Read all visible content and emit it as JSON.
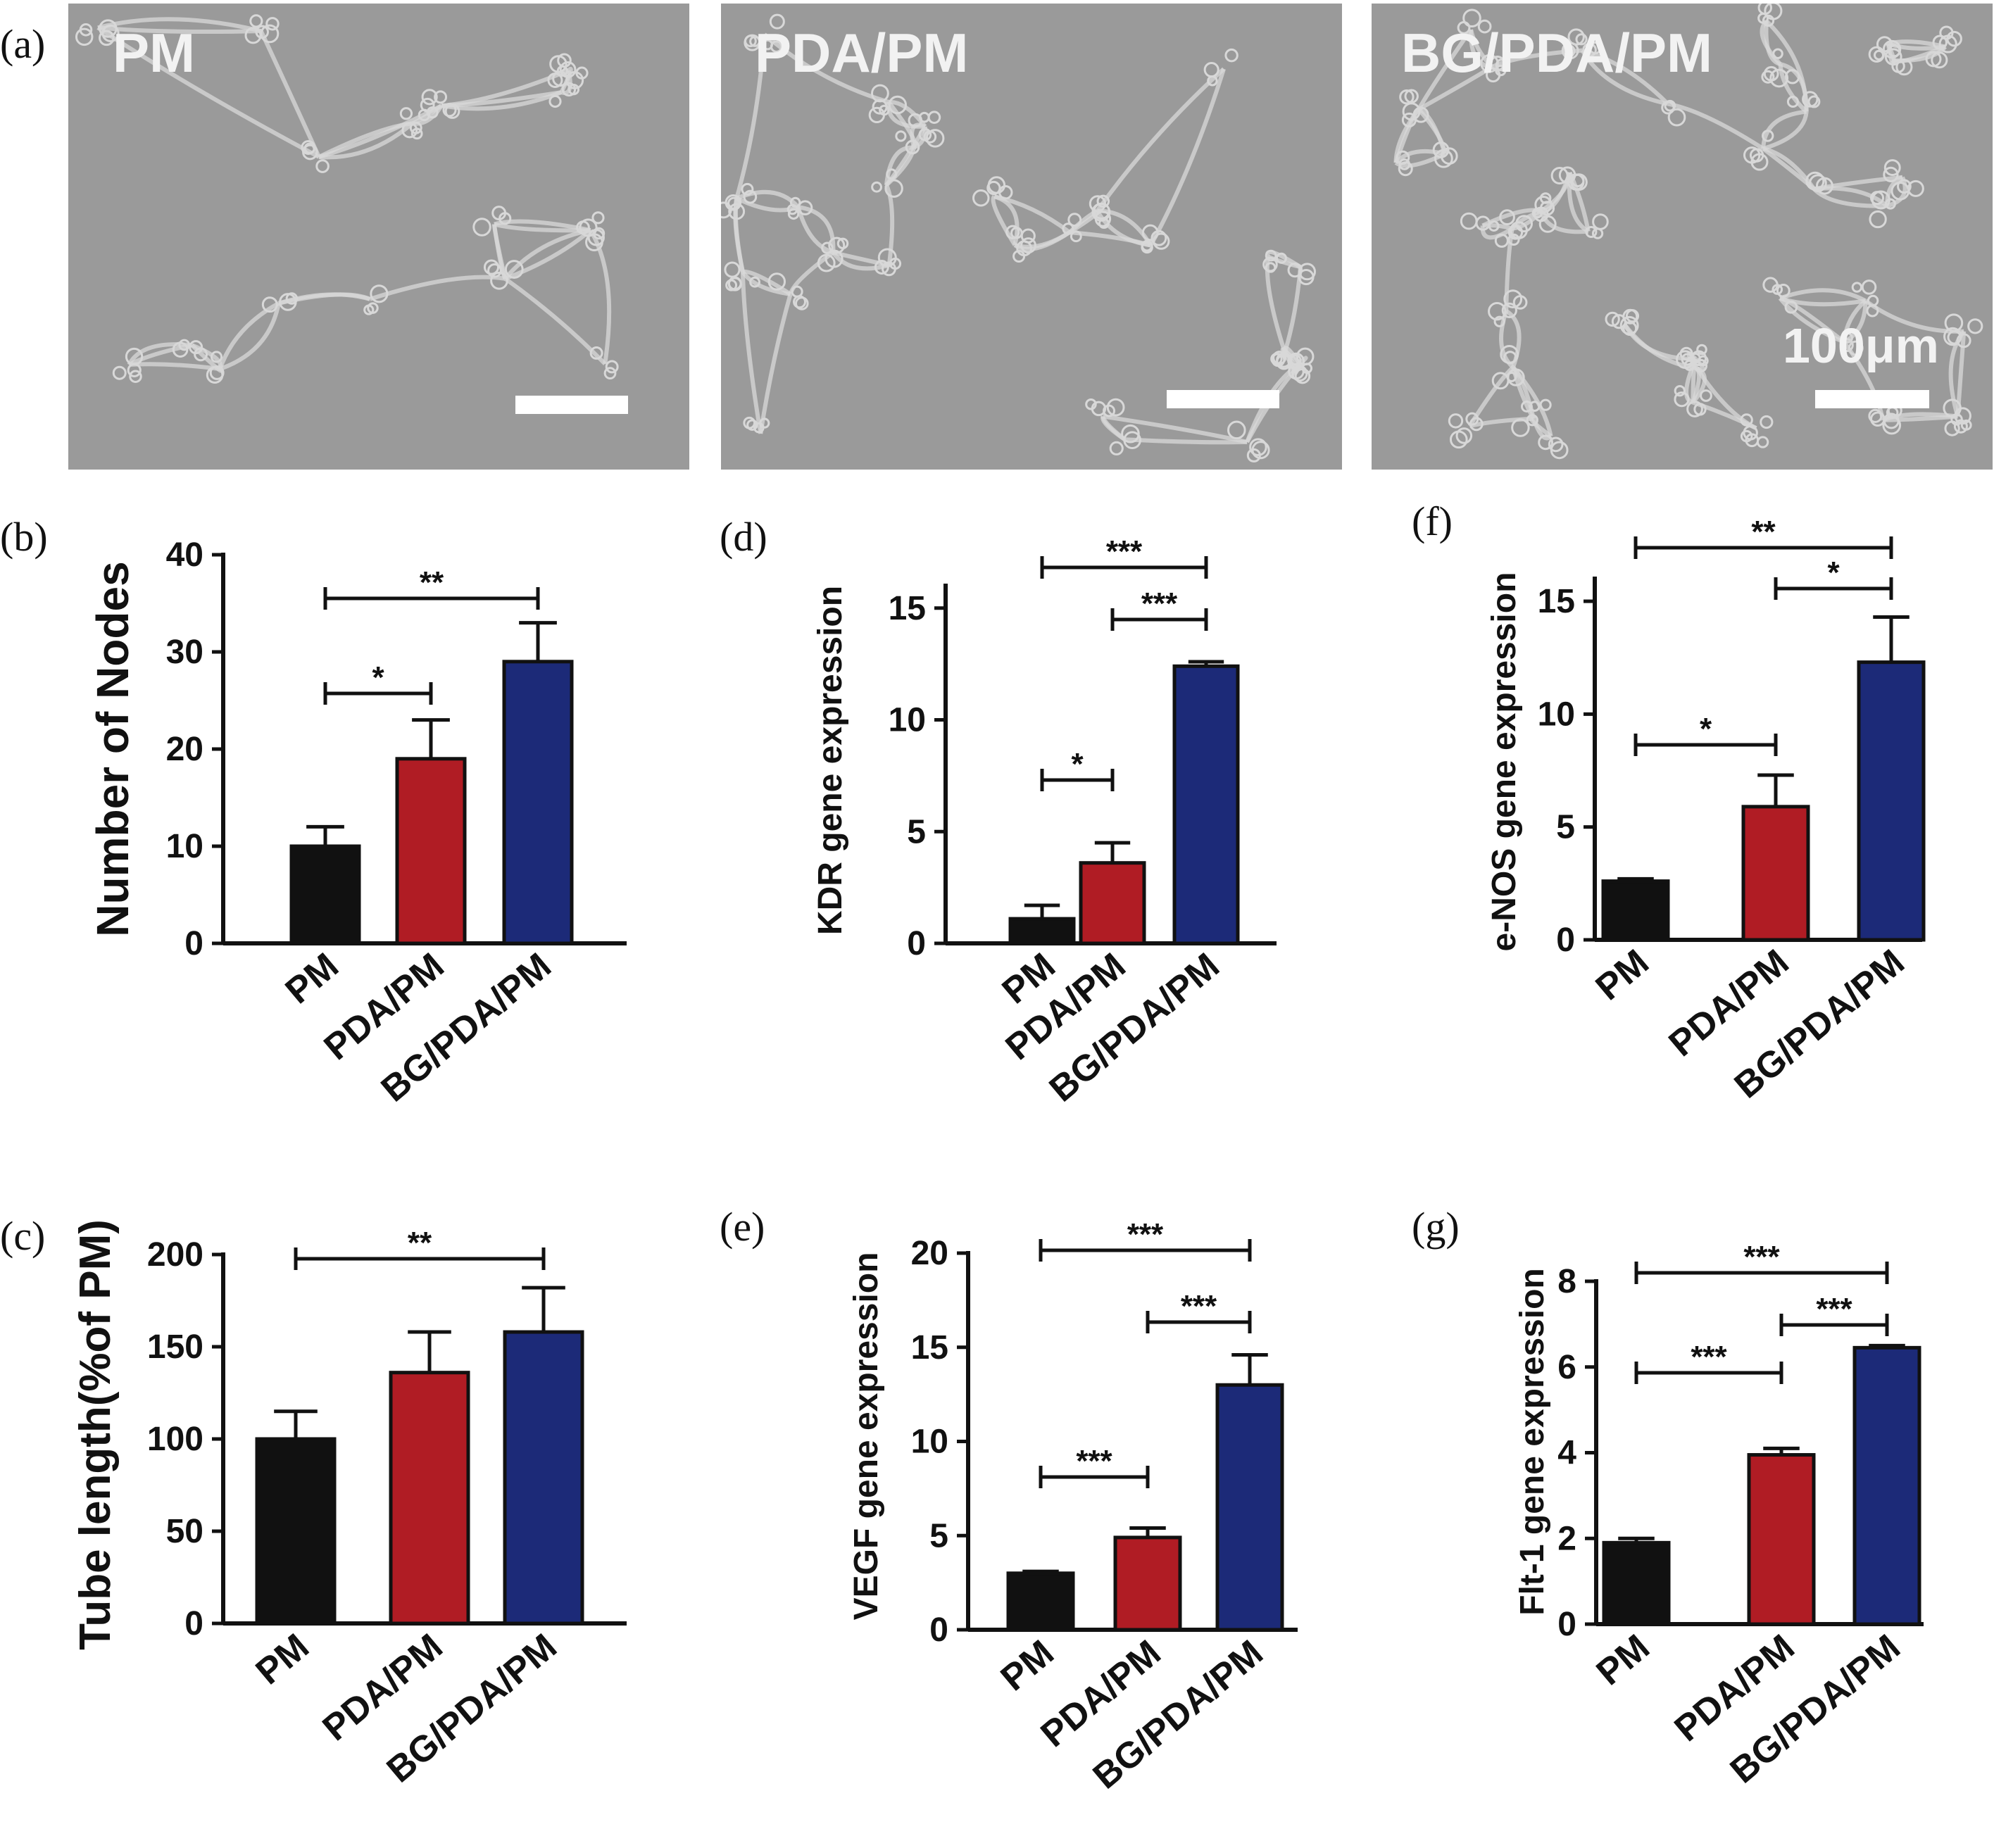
{
  "micrographs": {
    "panel_letter": "(a)",
    "labels": [
      "PM",
      "PDA/PM",
      "BG/PDA/PM"
    ],
    "scale_bar_label": "100μm"
  },
  "colors": {
    "PM": "#111111",
    "PDA/PM": "#b01c24",
    "BG/PDA/PM": "#1c2a78",
    "micrograph_bg": "#9a9a9a",
    "cell_network": "#d8d8d8"
  },
  "chart_data": [
    {
      "panel": "(b)",
      "type": "bar",
      "categories": [
        "PM",
        "PDA/PM",
        "BG/PDA/PM"
      ],
      "values": [
        10,
        19,
        29
      ],
      "errors": [
        2,
        4,
        4
      ],
      "ylabel": "Number of Nodes",
      "ylim": [
        0,
        40
      ],
      "yticks": [
        0,
        10,
        20,
        30,
        40
      ],
      "significance": [
        {
          "from": 0,
          "to": 2,
          "label": "**"
        },
        {
          "from": 0,
          "to": 1,
          "label": "*"
        }
      ]
    },
    {
      "panel": "(c)",
      "type": "bar",
      "categories": [
        "PM",
        "PDA/PM",
        "BG/PDA/PM"
      ],
      "values": [
        100,
        136,
        158
      ],
      "errors": [
        15,
        22,
        24
      ],
      "ylabel": "Tube length(%of PM)",
      "ylim": [
        0,
        200
      ],
      "yticks": [
        0,
        50,
        100,
        150,
        200
      ],
      "significance": [
        {
          "from": 0,
          "to": 2,
          "label": "**"
        }
      ]
    },
    {
      "panel": "(d)",
      "type": "bar",
      "categories": [
        "PM",
        "PDA/PM",
        "BG/PDA/PM"
      ],
      "values": [
        1.1,
        3.6,
        12.4
      ],
      "errors": [
        0.6,
        0.9,
        0.2
      ],
      "ylabel": "KDR gene expression",
      "ylim": [
        0,
        16
      ],
      "yticks": [
        0,
        5,
        10,
        15
      ],
      "significance": [
        {
          "from": 0,
          "to": 2,
          "label": "***"
        },
        {
          "from": 1,
          "to": 2,
          "label": "***"
        },
        {
          "from": 0,
          "to": 1,
          "label": "*"
        }
      ]
    },
    {
      "panel": "(e)",
      "type": "bar",
      "categories": [
        "PM",
        "PDA/PM",
        "BG/PDA/PM"
      ],
      "values": [
        3.0,
        4.9,
        13.0
      ],
      "errors": [
        0.1,
        0.5,
        1.6
      ],
      "ylabel": "VEGF gene expression",
      "ylim": [
        0,
        20
      ],
      "yticks": [
        0,
        5,
        10,
        15,
        20
      ],
      "significance": [
        {
          "from": 0,
          "to": 2,
          "label": "***"
        },
        {
          "from": 1,
          "to": 2,
          "label": "***"
        },
        {
          "from": 0,
          "to": 1,
          "label": "***"
        }
      ]
    },
    {
      "panel": "(f)",
      "type": "bar",
      "categories": [
        "PM",
        "PDA/PM",
        "BG/PDA/PM"
      ],
      "values": [
        2.6,
        5.9,
        12.3
      ],
      "errors": [
        0.1,
        1.4,
        2.0
      ],
      "ylabel": "e-NOS gene expression",
      "ylim": [
        0,
        16
      ],
      "yticks": [
        0,
        5,
        10,
        15
      ],
      "significance": [
        {
          "from": 0,
          "to": 2,
          "label": "**"
        },
        {
          "from": 1,
          "to": 2,
          "label": "*"
        },
        {
          "from": 0,
          "to": 1,
          "label": "*"
        }
      ]
    },
    {
      "panel": "(g)",
      "type": "bar",
      "categories": [
        "PM",
        "PDA/PM",
        "BG/PDA/PM"
      ],
      "values": [
        1.9,
        3.95,
        6.45
      ],
      "errors": [
        0.1,
        0.15,
        0.05
      ],
      "ylabel": "Flt-1 gene expression",
      "ylim": [
        0,
        8
      ],
      "yticks": [
        0,
        2,
        4,
        6,
        8
      ],
      "significance": [
        {
          "from": 0,
          "to": 2,
          "label": "***"
        },
        {
          "from": 1,
          "to": 2,
          "label": "***"
        },
        {
          "from": 0,
          "to": 1,
          "label": "***"
        }
      ]
    }
  ]
}
